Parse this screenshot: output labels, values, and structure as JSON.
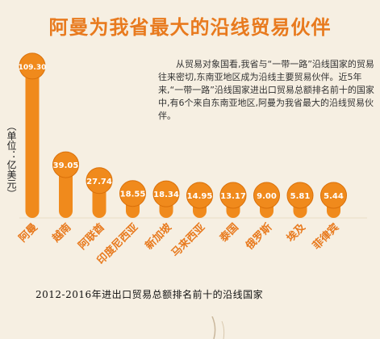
{
  "title": "阿曼为我省最大的沿线贸易伙伴",
  "description": "从贸易对象国看,我省与“一带一路”沿线国家的贸易往来密切,东南亚地区成为沿线主要贸易伙伴。近5年来,“一带一路”沿线国家进出口贸易总额排名前十的国家中,有6个来自东南亚地区,阿曼为我省最大的沿线贸易伙伴。",
  "unit_label": "（单位：亿美元）",
  "caption": "2012-2016年进出口贸易总额排名前十的沿线国家",
  "colors": {
    "bar": "#f08a1c",
    "bar_dark": "#d9700a",
    "title": "#e87a1e",
    "label_text": "#ffffff"
  },
  "chart_data": {
    "type": "bar",
    "title": "阿曼为我省最大的沿线贸易伙伴",
    "ylabel": "（单位：亿美元）",
    "categories": [
      "阿曼",
      "越南",
      "阿联酋",
      "印度尼西亚",
      "新加坡",
      "马来西亚",
      "泰国",
      "俄罗斯",
      "埃及",
      "菲律宾"
    ],
    "values": [
      109.3,
      39.05,
      27.74,
      18.55,
      18.34,
      14.95,
      13.17,
      9.0,
      5.81,
      5.44
    ],
    "value_labels": [
      "109.30",
      "39.05",
      "27.74",
      "18.55",
      "18.34",
      "14.95",
      "13.17",
      "9.00",
      "5.81",
      "5.44"
    ],
    "ylim": [
      0,
      115
    ],
    "grid": false,
    "legend": "none"
  }
}
